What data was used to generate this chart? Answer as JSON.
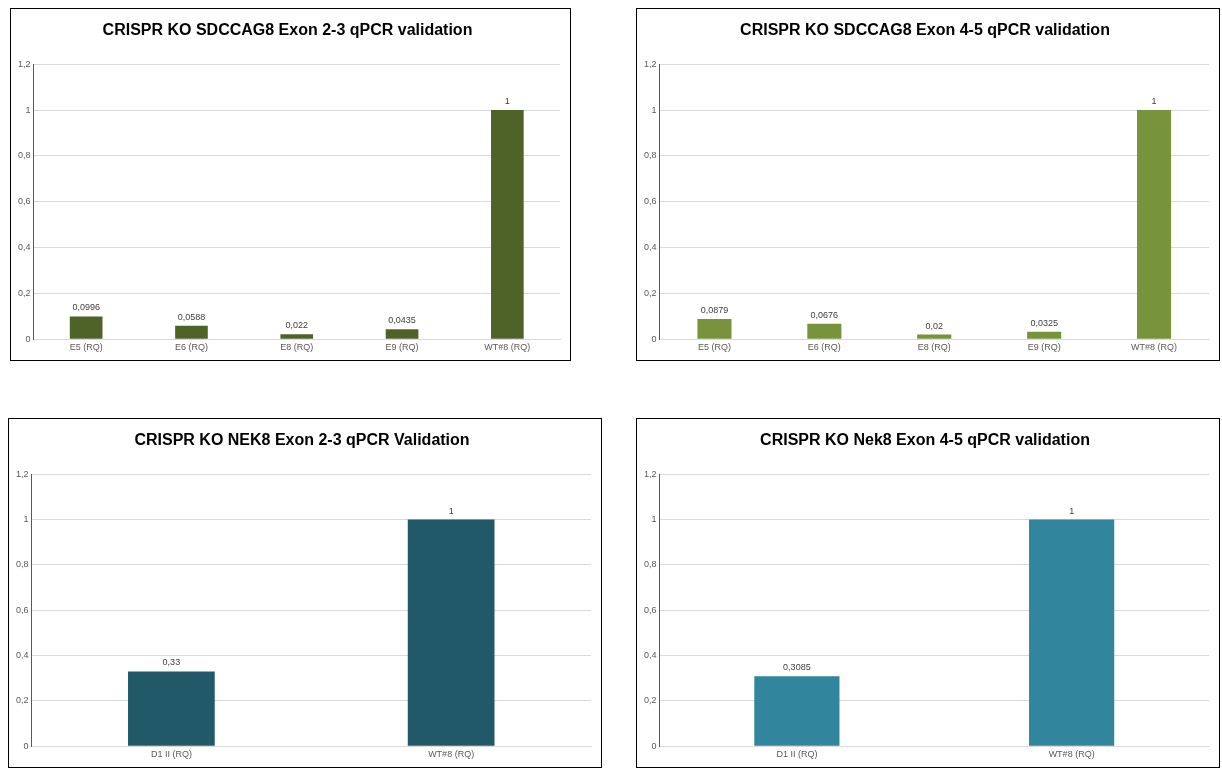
{
  "chart_data": [
    {
      "type": "bar",
      "title": "CRISPR KO SDCCAG8 Exon 2-3 qPCR validation",
      "categories": [
        "E5 (RQ)",
        "E6 (RQ)",
        "E8 (RQ)",
        "E9 (RQ)",
        "WT#8 (RQ)"
      ],
      "values": [
        0.0996,
        0.0588,
        0.022,
        0.0435,
        1
      ],
      "value_labels": [
        "0,0996",
        "0,0588",
        "0,022",
        "0,0435",
        "1"
      ],
      "color": "#4f6228",
      "ylim": [
        0,
        1.2
      ],
      "yticks": [
        {
          "value": 0,
          "label": "0"
        },
        {
          "value": 0.2,
          "label": "0,2"
        },
        {
          "value": 0.4,
          "label": "0,4"
        },
        {
          "value": 0.6,
          "label": "0,6"
        },
        {
          "value": 0.8,
          "label": "0,8"
        },
        {
          "value": 1,
          "label": "1"
        },
        {
          "value": 1.2,
          "label": "1,2"
        }
      ],
      "grid": "y"
    },
    {
      "type": "bar",
      "title": "CRISPR KO SDCCAG8 Exon 4-5 qPCR validation",
      "categories": [
        "E5 (RQ)",
        "E6 (RQ)",
        "E8 (RQ)",
        "E9 (RQ)",
        "WT#8 (RQ)"
      ],
      "values": [
        0.0879,
        0.0676,
        0.02,
        0.0325,
        1
      ],
      "value_labels": [
        "0,0879",
        "0,0676",
        "0,02",
        "0,0325",
        "1"
      ],
      "color": "#77933c",
      "ylim": [
        0,
        1.2
      ],
      "yticks": [
        {
          "value": 0,
          "label": "0"
        },
        {
          "value": 0.2,
          "label": "0,2"
        },
        {
          "value": 0.4,
          "label": "0,4"
        },
        {
          "value": 0.6,
          "label": "0,6"
        },
        {
          "value": 0.8,
          "label": "0,8"
        },
        {
          "value": 1,
          "label": "1"
        },
        {
          "value": 1.2,
          "label": "1,2"
        }
      ],
      "grid": "y"
    },
    {
      "type": "bar",
      "title": "CRISPR KO NEK8 Exon 2-3 qPCR Validation",
      "categories": [
        "D1 II (RQ)",
        "WT#8 (RQ)"
      ],
      "values": [
        0.33,
        1
      ],
      "value_labels": [
        "0,33",
        "1"
      ],
      "color": "#215968",
      "ylim": [
        0,
        1.2
      ],
      "yticks": [
        {
          "value": 0,
          "label": "0"
        },
        {
          "value": 0.2,
          "label": "0,2"
        },
        {
          "value": 0.4,
          "label": "0,4"
        },
        {
          "value": 0.6,
          "label": "0,6"
        },
        {
          "value": 0.8,
          "label": "0,8"
        },
        {
          "value": 1,
          "label": "1"
        },
        {
          "value": 1.2,
          "label": "1,2"
        }
      ],
      "grid": "y"
    },
    {
      "type": "bar",
      "title": "CRISPR KO Nek8 Exon 4-5 qPCR validation",
      "categories": [
        "D1 II (RQ)",
        "WT#8 (RQ)"
      ],
      "values": [
        0.3085,
        1
      ],
      "value_labels": [
        "0,3085",
        "1"
      ],
      "color": "#31859c",
      "ylim": [
        0,
        1.2
      ],
      "yticks": [
        {
          "value": 0,
          "label": "0"
        },
        {
          "value": 0.2,
          "label": "0,2"
        },
        {
          "value": 0.4,
          "label": "0,4"
        },
        {
          "value": 0.6,
          "label": "0,6"
        },
        {
          "value": 0.8,
          "label": "0,8"
        },
        {
          "value": 1,
          "label": "1"
        },
        {
          "value": 1.2,
          "label": "1,2"
        }
      ],
      "grid": "y"
    }
  ]
}
